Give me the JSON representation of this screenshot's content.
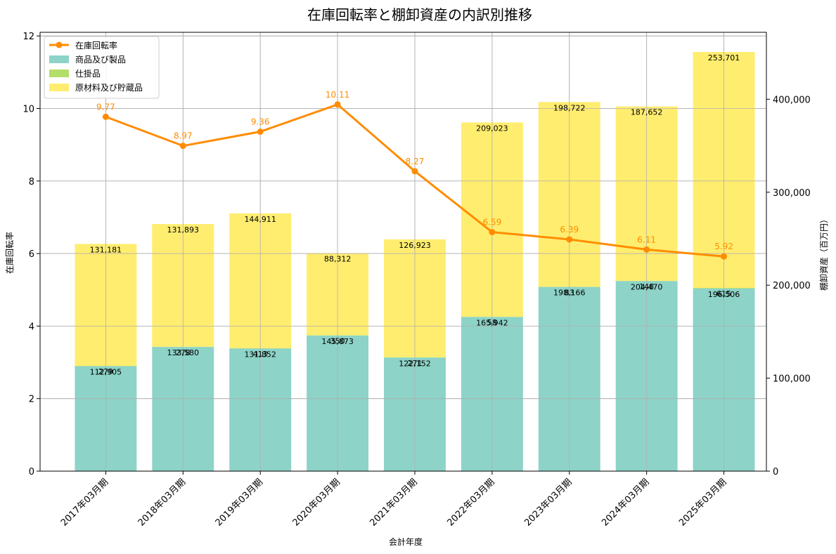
{
  "chart_data": {
    "type": "bar",
    "title": "在庫回転率と棚卸資産の内訳別推移",
    "xlabel": "会計年度",
    "ylabel_left": "在庫回転率",
    "ylabel_right": "棚卸資産（百万円）",
    "categories": [
      "2017年03月期",
      "2018年03月期",
      "2019年03月期",
      "2020年03月期",
      "2021年03月期",
      "2022年03月期",
      "2023年03月期",
      "2024年03月期",
      "2025年03月期"
    ],
    "ylim_left": [
      0,
      12.1
    ],
    "yticks_left": [
      "0",
      "2",
      "4",
      "6",
      "8",
      "10",
      "12"
    ],
    "ylim_right": [
      0,
      472000
    ],
    "yticks_right": [
      "0",
      "100,000",
      "200,000",
      "300,000",
      "400,000"
    ],
    "grid": true,
    "legend_position": "top-left",
    "bar_series": [
      {
        "name": "商品及び製品",
        "color": "#8dd3c7",
        "values": [
          112905,
          133580,
          131852,
          145873,
          122152,
          165942,
          198166,
          204470,
          196506
        ],
        "labels": [
          "112,905",
          "133,580",
          "131,852",
          "145,873",
          "122,152",
          "165,942",
          "198,166",
          "204,470",
          "196,506"
        ]
      },
      {
        "name": "仕掛品",
        "color": "#b3de69",
        "values": [
          279,
          278,
          413,
          350,
          271,
          58,
          83,
          148,
          615
        ],
        "labels": [
          "279",
          "278",
          "413",
          "350",
          "271",
          "58",
          "83",
          "148",
          "615"
        ]
      },
      {
        "name": "原材料及び貯蔵品",
        "color": "#ffed6f",
        "values": [
          131181,
          131893,
          144911,
          88312,
          126923,
          209023,
          198722,
          187652,
          253701
        ],
        "labels": [
          "131,181",
          "131,893",
          "144,911",
          "88,312",
          "126,923",
          "209,023",
          "198,722",
          "187,652",
          "253,701"
        ]
      }
    ],
    "line_series": {
      "name": "在庫回転率",
      "color": "#ff8c00",
      "values": [
        9.77,
        8.97,
        9.36,
        10.11,
        8.27,
        6.59,
        6.39,
        6.11,
        5.92
      ],
      "labels": [
        "9.77",
        "8.97",
        "9.36",
        "10.11",
        "8.27",
        "6.59",
        "6.39",
        "6.11",
        "5.92"
      ]
    }
  }
}
